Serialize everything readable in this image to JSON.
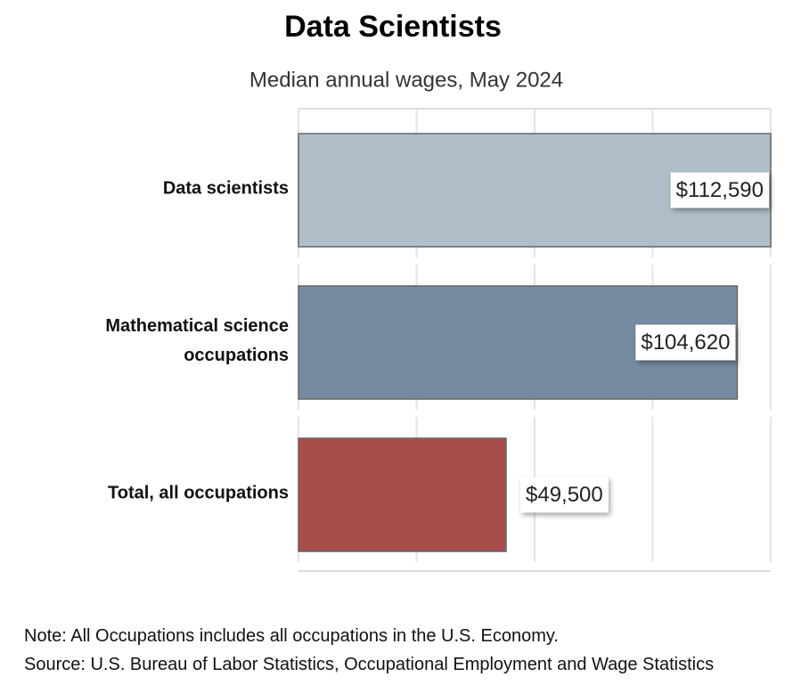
{
  "chart_data": {
    "type": "bar",
    "orientation": "horizontal",
    "title": "Data Scientists",
    "subtitle": "Median annual wages, May 2024",
    "categories": [
      "Data scientists",
      "Mathematical science occupations",
      "Total, all occupations"
    ],
    "values": [
      112590,
      104620,
      49500
    ],
    "value_labels": [
      "$112,590",
      "$104,620",
      "$49,500"
    ],
    "colors": [
      "#b0bec9",
      "#768ba1",
      "#a94d4a"
    ],
    "xlim": [
      0,
      112590
    ],
    "xticks": [
      0,
      28147.5,
      56295,
      84442.5,
      112590
    ],
    "grid": true,
    "notes": [
      "Note: All Occupations includes all occupations in the U.S. Economy.",
      "Source: U.S. Bureau of Labor Statistics, Occupational Employment and Wage Statistics"
    ]
  }
}
